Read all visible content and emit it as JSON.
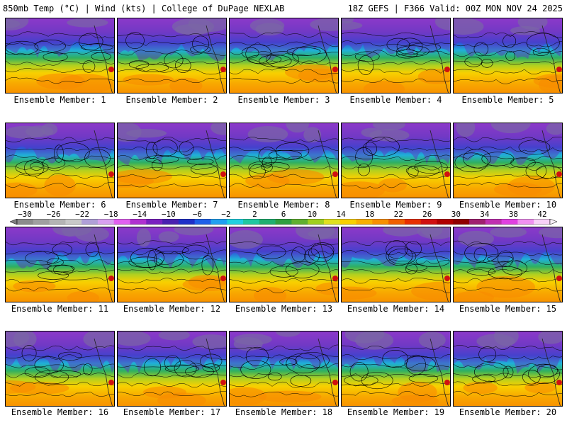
{
  "header": {
    "left": "850mb Temp (°C) | Wind (kts) | College of DuPage NEXLAB",
    "right": "18Z GEFS | F366 Valid: 00Z MON NOV 24 2025"
  },
  "members": [
    "Ensemble Member: 1",
    "Ensemble Member: 2",
    "Ensemble Member: 3",
    "Ensemble Member: 4",
    "Ensemble Member: 5",
    "Ensemble Member: 6",
    "Ensemble Member: 7",
    "Ensemble Member: 8",
    "Ensemble Member: 9",
    "Ensemble Member: 10",
    "Ensemble Member: 11",
    "Ensemble Member: 12",
    "Ensemble Member: 13",
    "Ensemble Member: 14",
    "Ensemble Member: 15",
    "Ensemble Member: 16",
    "Ensemble Member: 17",
    "Ensemble Member: 18",
    "Ensemble Member: 19",
    "Ensemble Member: 20"
  ],
  "colorbar": {
    "labels": [
      "−30",
      "−26",
      "−22",
      "−18",
      "−14",
      "−10",
      "−6",
      "−2",
      "2",
      "6",
      "10",
      "14",
      "18",
      "22",
      "26",
      "30",
      "34",
      "38",
      "42"
    ],
    "colors": [
      "#8c8c8c",
      "#a0a0a0",
      "#b4b4b4",
      "#c8c8c8",
      "#b0a0d8",
      "#d8a0f0",
      "#e060f0",
      "#b030d0",
      "#7a20c0",
      "#4a20b0",
      "#2030c8",
      "#2060e8",
      "#20a0f0",
      "#20d0e0",
      "#20c8a0",
      "#20b070",
      "#30a040",
      "#60b030",
      "#a0d020",
      "#e0e020",
      "#f8d000",
      "#f8b000",
      "#f89000",
      "#f06000",
      "#e83000",
      "#d01010",
      "#b00000",
      "#900000",
      "#a02070",
      "#c030b0",
      "#e040e0",
      "#f090f0",
      "#f8d0f8"
    ]
  }
}
